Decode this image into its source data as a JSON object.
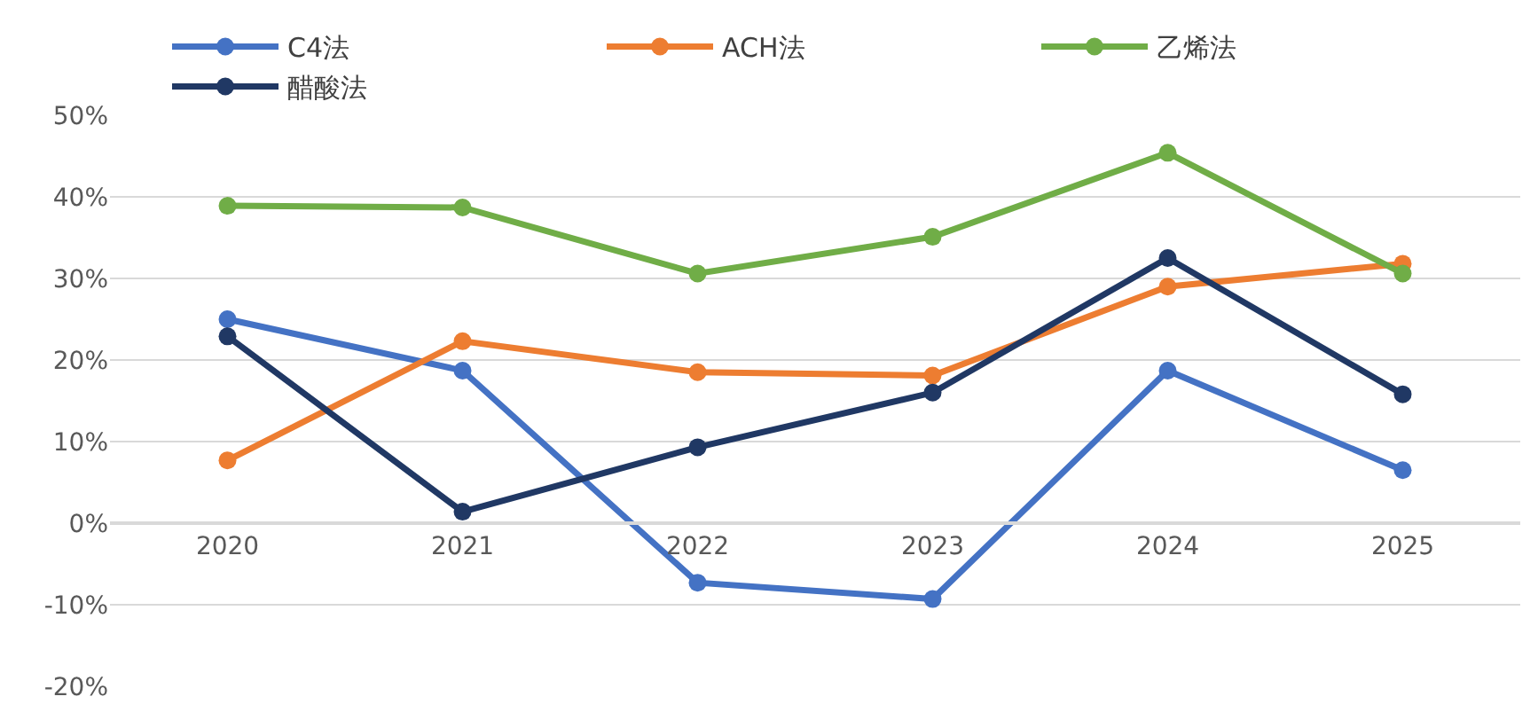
{
  "chart_data": {
    "type": "line",
    "categories": [
      "2020",
      "2021",
      "2022",
      "2023",
      "2024",
      "2025"
    ],
    "series": [
      {
        "name": "C4法",
        "color": "#4472c4",
        "values": [
          25.0,
          18.7,
          -7.3,
          -9.3,
          18.7,
          6.5
        ]
      },
      {
        "name": "ACH法",
        "color": "#ed7d31",
        "values": [
          7.7,
          22.3,
          18.5,
          18.1,
          29.0,
          31.8
        ]
      },
      {
        "name": "乙烯法",
        "color": "#70ad47",
        "values": [
          38.9,
          38.7,
          30.6,
          35.1,
          45.4,
          30.6
        ]
      },
      {
        "name": "醋酸法",
        "color": "#203864",
        "values": [
          22.9,
          1.4,
          9.3,
          16.0,
          32.5,
          15.8
        ]
      }
    ],
    "ylim": [
      -20,
      50
    ],
    "yticks": [
      {
        "value": -20,
        "label": "-20%"
      },
      {
        "value": -10,
        "label": "-10%"
      },
      {
        "value": 0,
        "label": "0%"
      },
      {
        "value": 10,
        "label": "10%"
      },
      {
        "value": 20,
        "label": "20%"
      },
      {
        "value": 30,
        "label": "30%"
      },
      {
        "value": 40,
        "label": "40%"
      },
      {
        "value": 50,
        "label": "50%"
      }
    ],
    "grid": "y",
    "legend": "top",
    "marker": "circle",
    "line_style": "solid"
  }
}
